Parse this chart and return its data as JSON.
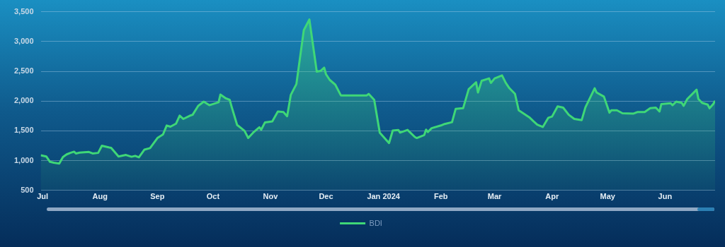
{
  "chart_data": {
    "type": "area",
    "x": [
      "2023-06-30",
      "2023-07-03",
      "2023-07-05",
      "2023-07-07",
      "2023-07-10",
      "2023-07-12",
      "2023-07-14",
      "2023-07-16",
      "2023-07-18",
      "2023-07-19",
      "2023-07-21",
      "2023-07-26",
      "2023-07-28",
      "2023-07-31",
      "2023-08-02",
      "2023-08-06",
      "2023-08-07",
      "2023-08-11",
      "2023-08-15",
      "2023-08-18",
      "2023-08-20",
      "2023-08-22",
      "2023-08-25",
      "2023-08-28",
      "2023-09-01",
      "2023-09-04",
      "2023-09-06",
      "2023-09-08",
      "2023-09-11",
      "2023-09-13",
      "2023-09-15",
      "2023-09-19",
      "2023-09-20",
      "2023-09-23",
      "2023-09-26",
      "2023-09-29",
      "2023-10-04",
      "2023-10-05",
      "2023-10-08",
      "2023-10-10",
      "2023-10-11",
      "2023-10-14",
      "2023-10-18",
      "2023-10-20",
      "2023-10-23",
      "2023-10-26",
      "2023-10-27",
      "2023-10-29",
      "2023-11-02",
      "2023-11-05",
      "2023-11-08",
      "2023-11-10",
      "2023-11-12",
      "2023-11-15",
      "2023-11-19",
      "2023-11-22",
      "2023-11-26",
      "2023-11-28",
      "2023-11-30",
      "2023-12-01",
      "2023-12-03",
      "2023-12-06",
      "2023-12-09",
      "2023-12-23",
      "2023-12-24",
      "2023-12-27",
      "2023-12-30",
      "2024-01-04",
      "2024-01-06",
      "2024-01-09",
      "2024-01-10",
      "2024-01-14",
      "2024-01-18",
      "2024-01-19",
      "2024-01-23",
      "2024-01-24",
      "2024-01-25",
      "2024-01-27",
      "2024-02-01",
      "2024-02-03",
      "2024-02-07",
      "2024-02-09",
      "2024-02-13",
      "2024-02-16",
      "2024-02-20",
      "2024-02-21",
      "2024-02-23",
      "2024-02-27",
      "2024-02-28",
      "2024-03-01",
      "2024-03-05",
      "2024-03-07",
      "2024-03-09",
      "2024-03-12",
      "2024-03-14",
      "2024-03-20",
      "2024-03-22",
      "2024-03-24",
      "2024-03-27",
      "2024-03-30",
      "2024-04-01",
      "2024-04-04",
      "2024-04-07",
      "2024-04-10",
      "2024-04-13",
      "2024-04-17",
      "2024-04-19",
      "2024-04-24",
      "2024-04-25",
      "2024-04-29",
      "2024-05-02",
      "2024-05-03",
      "2024-05-06",
      "2024-05-09",
      "2024-05-15",
      "2024-05-17",
      "2024-05-21",
      "2024-05-24",
      "2024-05-27",
      "2024-05-29",
      "2024-05-30",
      "2024-06-04",
      "2024-06-05",
      "2024-06-07",
      "2024-06-10",
      "2024-06-11",
      "2024-06-13",
      "2024-06-18",
      "2024-06-19",
      "2024-06-21",
      "2024-06-24",
      "2024-06-25",
      "2024-06-27",
      "2024-06-28"
    ],
    "series": [
      {
        "name": "BDI",
        "color": "#3fd777",
        "values": [
          1090,
          1070,
          980,
          965,
          950,
          1060,
          1105,
          1130,
          1150,
          1120,
          1135,
          1145,
          1120,
          1130,
          1250,
          1220,
          1215,
          1070,
          1095,
          1065,
          1080,
          1055,
          1185,
          1210,
          1380,
          1440,
          1590,
          1570,
          1620,
          1755,
          1700,
          1760,
          1770,
          1920,
          1990,
          1930,
          1980,
          2110,
          2045,
          2020,
          1910,
          1600,
          1500,
          1380,
          1480,
          1560,
          1520,
          1640,
          1660,
          1825,
          1815,
          1745,
          2105,
          2285,
          3190,
          3370,
          2495,
          2505,
          2560,
          2450,
          2355,
          2275,
          2095,
          2095,
          2120,
          2020,
          1470,
          1295,
          1505,
          1515,
          1470,
          1515,
          1395,
          1380,
          1430,
          1520,
          1480,
          1545,
          1590,
          1615,
          1645,
          1870,
          1880,
          2200,
          2315,
          2145,
          2340,
          2380,
          2305,
          2380,
          2430,
          2305,
          2215,
          2120,
          1845,
          1720,
          1660,
          1605,
          1565,
          1720,
          1740,
          1910,
          1890,
          1770,
          1700,
          1680,
          1895,
          2215,
          2145,
          2075,
          1805,
          1845,
          1845,
          1795,
          1790,
          1815,
          1815,
          1880,
          1890,
          1825,
          1950,
          1965,
          1930,
          1990,
          1970,
          1920,
          2035,
          2190,
          2035,
          1970,
          1940,
          1880,
          1950,
          2005
        ]
      }
    ],
    "xlim": [
      "2023-06-30",
      "2024-06-28"
    ],
    "xticks": [
      {
        "value": "2023-07-01",
        "label": "Jul"
      },
      {
        "value": "2023-08-01",
        "label": "Aug"
      },
      {
        "value": "2023-09-01",
        "label": "Sep"
      },
      {
        "value": "2023-10-01",
        "label": "Oct"
      },
      {
        "value": "2023-11-01",
        "label": "Nov"
      },
      {
        "value": "2023-12-01",
        "label": "Dec"
      },
      {
        "value": "2024-01-01",
        "label": "Jan 2024"
      },
      {
        "value": "2024-02-01",
        "label": "Feb"
      },
      {
        "value": "2024-03-01",
        "label": "Mar"
      },
      {
        "value": "2024-04-01",
        "label": "Apr"
      },
      {
        "value": "2024-05-01",
        "label": "May"
      },
      {
        "value": "2024-06-01",
        "label": "Jun"
      }
    ],
    "ylim": [
      500,
      3500
    ],
    "yticks": [
      {
        "value": 500,
        "label": "500"
      },
      {
        "value": 1000,
        "label": "1,000"
      },
      {
        "value": 1500,
        "label": "1,500"
      },
      {
        "value": 2000,
        "label": "2,000"
      },
      {
        "value": 2500,
        "label": "2,500"
      },
      {
        "value": 3000,
        "label": "3,000"
      },
      {
        "value": 3500,
        "label": "3,500"
      }
    ],
    "grid": "y",
    "legend": "bottom",
    "marker": "none",
    "line_style": "solid"
  }
}
